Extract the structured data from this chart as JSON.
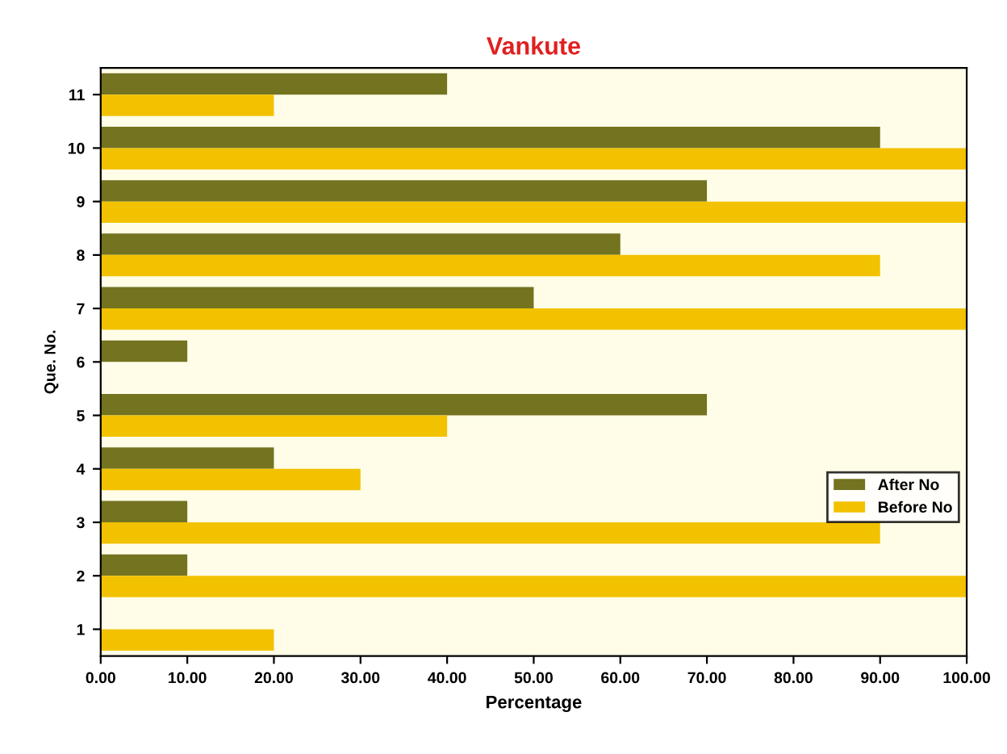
{
  "chart_data": {
    "type": "bar",
    "orientation": "horizontal",
    "title": "Vankute",
    "xlabel": "Percentage",
    "ylabel": "Que. No.",
    "categories": [
      "11",
      "10",
      "9",
      "8",
      "7",
      "6",
      "5",
      "4",
      "3",
      "2",
      "1"
    ],
    "series": [
      {
        "name": "After No",
        "color": "#737320",
        "values": [
          40,
          90,
          70,
          60,
          50,
          10,
          70,
          20,
          10,
          10,
          0
        ]
      },
      {
        "name": "Before No",
        "color": "#f2c200",
        "values": [
          20,
          100,
          100,
          90,
          100,
          0,
          40,
          30,
          90,
          100,
          20
        ]
      }
    ],
    "xlim": [
      0,
      100
    ],
    "xticks": [
      {
        "value": 0,
        "label": "0.00"
      },
      {
        "value": 10,
        "label": "10.00"
      },
      {
        "value": 20,
        "label": "20.00"
      },
      {
        "value": 30,
        "label": "30.00"
      },
      {
        "value": 40,
        "label": "40.00"
      },
      {
        "value": 50,
        "label": "50.00"
      },
      {
        "value": 60,
        "label": "60.00"
      },
      {
        "value": 70,
        "label": "70.00"
      },
      {
        "value": 80,
        "label": "80.00"
      },
      {
        "value": 90,
        "label": "90.00"
      },
      {
        "value": 100,
        "label": "100.00"
      }
    ],
    "grid": false,
    "legend": "right"
  }
}
